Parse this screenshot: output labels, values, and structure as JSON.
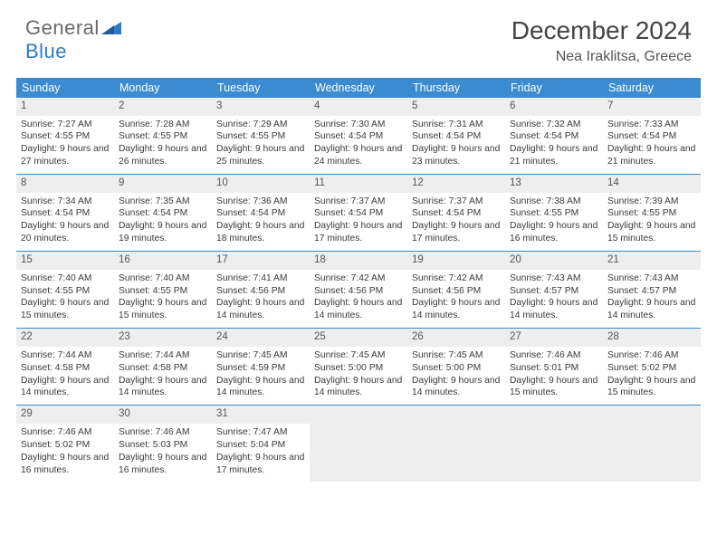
{
  "logo": {
    "text1": "General",
    "text2": "Blue"
  },
  "title": "December 2024",
  "location": "Nea Iraklitsa, Greece",
  "colors": {
    "header_bg": "#3b8bd0",
    "week_border": "#3b8bd0",
    "daynum_bg": "#eeeeee",
    "empty_bg": "#eeeeee",
    "logo_gray": "#6a6a6a",
    "logo_blue": "#2f7cc4"
  },
  "weekdays": [
    "Sunday",
    "Monday",
    "Tuesday",
    "Wednesday",
    "Thursday",
    "Friday",
    "Saturday"
  ],
  "weeks": [
    [
      {
        "n": "1",
        "sr": "7:27 AM",
        "ss": "4:55 PM",
        "dl": "9 hours and 27 minutes."
      },
      {
        "n": "2",
        "sr": "7:28 AM",
        "ss": "4:55 PM",
        "dl": "9 hours and 26 minutes."
      },
      {
        "n": "3",
        "sr": "7:29 AM",
        "ss": "4:55 PM",
        "dl": "9 hours and 25 minutes."
      },
      {
        "n": "4",
        "sr": "7:30 AM",
        "ss": "4:54 PM",
        "dl": "9 hours and 24 minutes."
      },
      {
        "n": "5",
        "sr": "7:31 AM",
        "ss": "4:54 PM",
        "dl": "9 hours and 23 minutes."
      },
      {
        "n": "6",
        "sr": "7:32 AM",
        "ss": "4:54 PM",
        "dl": "9 hours and 21 minutes."
      },
      {
        "n": "7",
        "sr": "7:33 AM",
        "ss": "4:54 PM",
        "dl": "9 hours and 21 minutes."
      }
    ],
    [
      {
        "n": "8",
        "sr": "7:34 AM",
        "ss": "4:54 PM",
        "dl": "9 hours and 20 minutes."
      },
      {
        "n": "9",
        "sr": "7:35 AM",
        "ss": "4:54 PM",
        "dl": "9 hours and 19 minutes."
      },
      {
        "n": "10",
        "sr": "7:36 AM",
        "ss": "4:54 PM",
        "dl": "9 hours and 18 minutes."
      },
      {
        "n": "11",
        "sr": "7:37 AM",
        "ss": "4:54 PM",
        "dl": "9 hours and 17 minutes."
      },
      {
        "n": "12",
        "sr": "7:37 AM",
        "ss": "4:54 PM",
        "dl": "9 hours and 17 minutes."
      },
      {
        "n": "13",
        "sr": "7:38 AM",
        "ss": "4:55 PM",
        "dl": "9 hours and 16 minutes."
      },
      {
        "n": "14",
        "sr": "7:39 AM",
        "ss": "4:55 PM",
        "dl": "9 hours and 15 minutes."
      }
    ],
    [
      {
        "n": "15",
        "sr": "7:40 AM",
        "ss": "4:55 PM",
        "dl": "9 hours and 15 minutes."
      },
      {
        "n": "16",
        "sr": "7:40 AM",
        "ss": "4:55 PM",
        "dl": "9 hours and 15 minutes."
      },
      {
        "n": "17",
        "sr": "7:41 AM",
        "ss": "4:56 PM",
        "dl": "9 hours and 14 minutes."
      },
      {
        "n": "18",
        "sr": "7:42 AM",
        "ss": "4:56 PM",
        "dl": "9 hours and 14 minutes."
      },
      {
        "n": "19",
        "sr": "7:42 AM",
        "ss": "4:56 PM",
        "dl": "9 hours and 14 minutes."
      },
      {
        "n": "20",
        "sr": "7:43 AM",
        "ss": "4:57 PM",
        "dl": "9 hours and 14 minutes."
      },
      {
        "n": "21",
        "sr": "7:43 AM",
        "ss": "4:57 PM",
        "dl": "9 hours and 14 minutes."
      }
    ],
    [
      {
        "n": "22",
        "sr": "7:44 AM",
        "ss": "4:58 PM",
        "dl": "9 hours and 14 minutes."
      },
      {
        "n": "23",
        "sr": "7:44 AM",
        "ss": "4:58 PM",
        "dl": "9 hours and 14 minutes."
      },
      {
        "n": "24",
        "sr": "7:45 AM",
        "ss": "4:59 PM",
        "dl": "9 hours and 14 minutes."
      },
      {
        "n": "25",
        "sr": "7:45 AM",
        "ss": "5:00 PM",
        "dl": "9 hours and 14 minutes."
      },
      {
        "n": "26",
        "sr": "7:45 AM",
        "ss": "5:00 PM",
        "dl": "9 hours and 14 minutes."
      },
      {
        "n": "27",
        "sr": "7:46 AM",
        "ss": "5:01 PM",
        "dl": "9 hours and 15 minutes."
      },
      {
        "n": "28",
        "sr": "7:46 AM",
        "ss": "5:02 PM",
        "dl": "9 hours and 15 minutes."
      }
    ],
    [
      {
        "n": "29",
        "sr": "7:46 AM",
        "ss": "5:02 PM",
        "dl": "9 hours and 16 minutes."
      },
      {
        "n": "30",
        "sr": "7:46 AM",
        "ss": "5:03 PM",
        "dl": "9 hours and 16 minutes."
      },
      {
        "n": "31",
        "sr": "7:47 AM",
        "ss": "5:04 PM",
        "dl": "9 hours and 17 minutes."
      },
      null,
      null,
      null,
      null
    ]
  ],
  "labels": {
    "sunrise": "Sunrise:",
    "sunset": "Sunset:",
    "daylight": "Daylight:"
  }
}
